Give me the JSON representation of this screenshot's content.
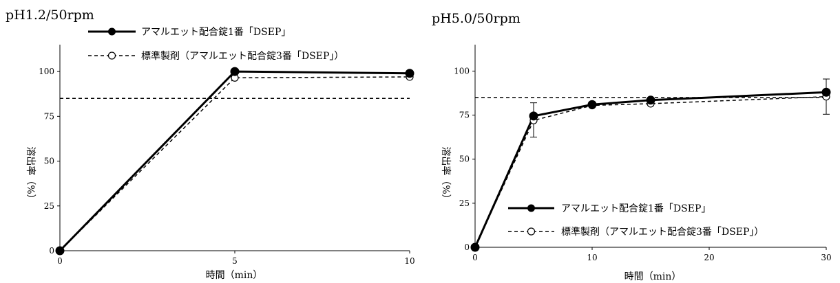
{
  "chart_data": [
    {
      "type": "line",
      "title": "pH1.2/50rpm",
      "xlabel": "時間（min）",
      "ylabel": "溶出率（%）",
      "x": [
        0,
        5,
        10
      ],
      "xlim": [
        0,
        10
      ],
      "ylim": [
        0,
        115
      ],
      "xticks": [
        "0",
        "5",
        "10"
      ],
      "yticks": [
        "0",
        "25",
        "50",
        "75",
        "100"
      ],
      "reference_line": 85,
      "legend_position": "top-center",
      "series": [
        {
          "name": "アマルエット配合錠1番「DSEP」",
          "values": [
            0,
            100,
            99
          ],
          "style": "solid",
          "marker": "filled-circle",
          "color": "#000000"
        },
        {
          "name": "標準製剤（アマルエット配合錠3番「DSEP」）",
          "values": [
            0,
            96.5,
            97
          ],
          "style": "dashed",
          "marker": "open-circle",
          "color": "#000000"
        }
      ]
    },
    {
      "type": "line",
      "title": "pH5.0/50rpm",
      "xlabel": "時間（min）",
      "ylabel": "溶出率（%）",
      "x": [
        0,
        5,
        10,
        15,
        30
      ],
      "xlim": [
        0,
        30
      ],
      "ylim": [
        0,
        115
      ],
      "xticks": [
        "0",
        "10",
        "20",
        "30"
      ],
      "yticks": [
        "0",
        "25",
        "50",
        "75",
        "100"
      ],
      "reference_line": 85,
      "legend_position": "bottom-right",
      "series": [
        {
          "name": "アマルエット配合錠1番「DSEP」",
          "values": [
            0,
            74.5,
            81,
            83.5,
            88
          ],
          "style": "solid",
          "marker": "filled-circle",
          "color": "#000000"
        },
        {
          "name": "標準製剤（アマルエット配合錠3番「DSEP」）",
          "values": [
            0,
            72,
            80.5,
            81.5,
            85.5
          ],
          "style": "dashed",
          "marker": "open-circle",
          "color": "#000000",
          "error_bars": [
            null,
            [
              62.5,
              82
            ],
            null,
            null,
            [
              75.5,
              95.5
            ]
          ]
        }
      ]
    }
  ]
}
